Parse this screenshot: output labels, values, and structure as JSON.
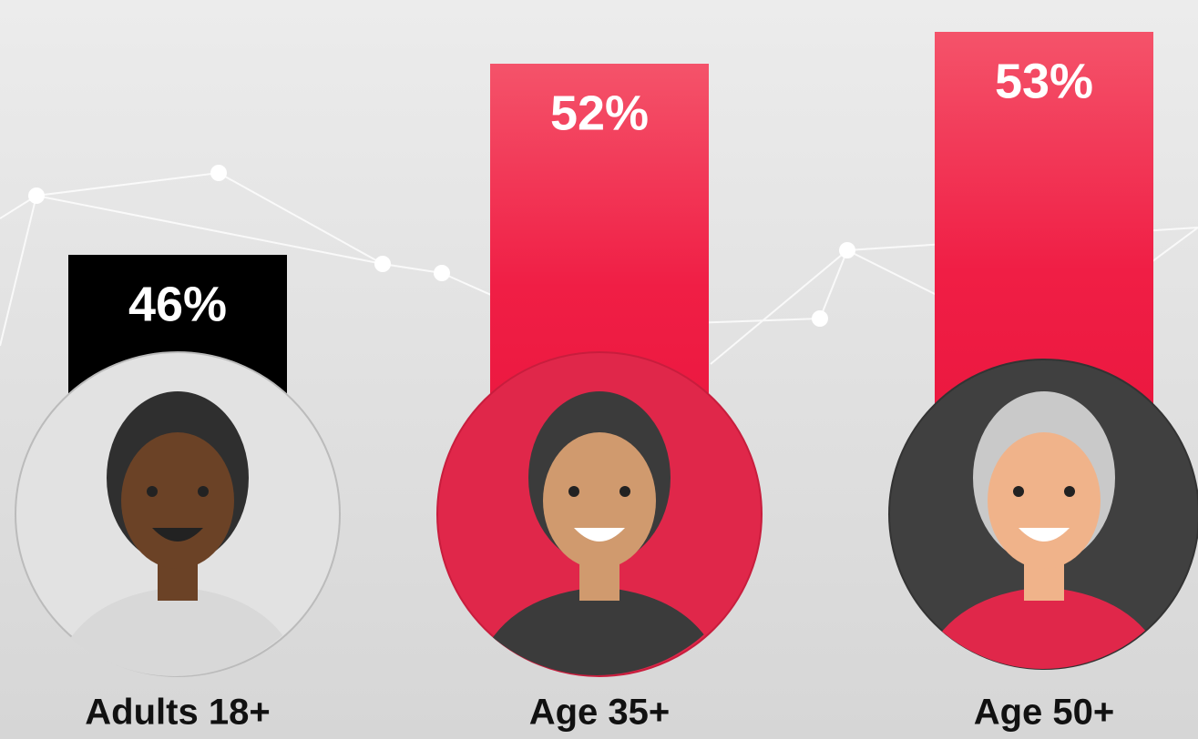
{
  "chart_data": {
    "type": "bar",
    "categories": [
      "Adults 18+",
      "Age 35+",
      "Age 50+"
    ],
    "values": [
      46,
      52,
      53
    ],
    "value_labels": [
      "46%",
      "52%",
      "53%"
    ],
    "colors": [
      "#000000",
      "#f0234a",
      "#f0234a"
    ],
    "ylim": [
      38,
      54
    ]
  }
}
